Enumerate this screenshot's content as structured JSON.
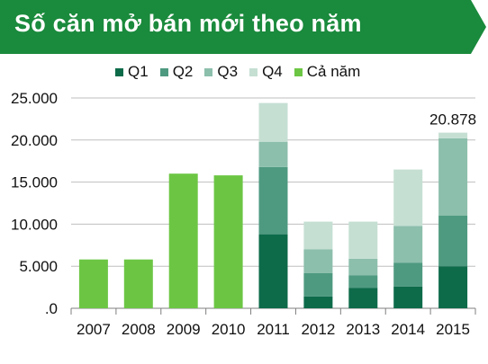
{
  "title": "Số căn mở bán mới theo năm",
  "colors": {
    "banner": "#1a8a3c",
    "q1": "#0d6b4a",
    "q2": "#4e9a80",
    "q3": "#8cbfac",
    "q4": "#c5dfd3",
    "full_year": "#6cc644",
    "gridline": "#bfbfbf",
    "axis": "#7f7f7f"
  },
  "legend": {
    "q1": "Q1",
    "q2": "Q2",
    "q3": "Q3",
    "q4": "Q4",
    "full_year": "Cả năm"
  },
  "chart_data": {
    "type": "bar",
    "stacked": true,
    "categories": [
      "2007",
      "2008",
      "2009",
      "2010",
      "2011",
      "2012",
      "2013",
      "2014",
      "2015"
    ],
    "series": [
      {
        "name": "Q1",
        "values": [
          null,
          null,
          null,
          null,
          8800,
          1400,
          2400,
          2600,
          5000
        ]
      },
      {
        "name": "Q2",
        "values": [
          null,
          null,
          null,
          null,
          8000,
          2800,
          1500,
          2800,
          6000
        ]
      },
      {
        "name": "Q3",
        "values": [
          null,
          null,
          null,
          null,
          3000,
          2800,
          2000,
          4400,
          9200
        ]
      },
      {
        "name": "Q4",
        "values": [
          null,
          null,
          null,
          null,
          4600,
          3300,
          4400,
          6700,
          678
        ]
      },
      {
        "name": "Cả năm",
        "values": [
          5800,
          5800,
          16000,
          15800,
          null,
          null,
          null,
          null,
          null
        ]
      }
    ],
    "y_ticks": [
      0,
      5000,
      10000,
      15000,
      20000,
      25000
    ],
    "y_tick_labels": [
      ".0",
      "5.000",
      "10.000",
      "15.000",
      "20.000",
      "25.000"
    ],
    "ylim": [
      0,
      25000
    ],
    "gridlines": true,
    "annotations": [
      {
        "category": "2015",
        "label": "20.878"
      }
    ],
    "legend_position": "top"
  }
}
